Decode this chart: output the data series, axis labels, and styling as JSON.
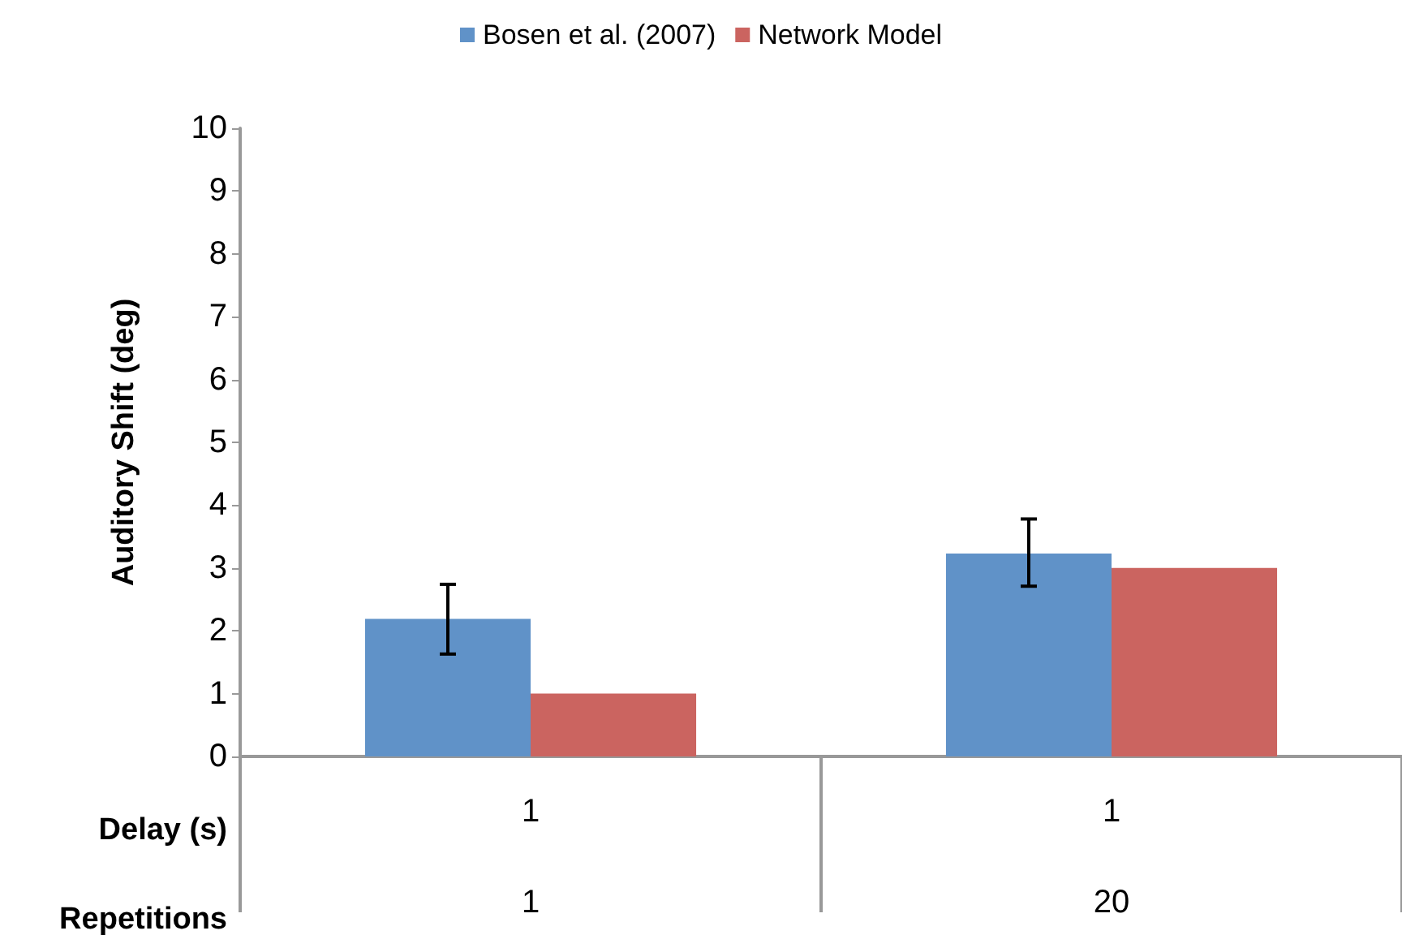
{
  "chart_data": {
    "type": "bar",
    "ylabel": "Auditory Shift (deg)",
    "categories": [
      "1\n1",
      "1\n20"
    ],
    "annotations": [
      "Delay (s)",
      "Repetitions"
    ],
    "series": [
      {
        "name": "Bosen et al. (2007)",
        "color": "#6092c8",
        "values": [
          2.19,
          3.23
        ],
        "errors": [
          [
            1.63,
            2.74
          ],
          [
            2.71,
            3.78
          ]
        ]
      },
      {
        "name": "Network Model",
        "color": "#cb6460",
        "values": [
          1.0,
          3.0
        ]
      }
    ],
    "ylim": [
      0,
      10
    ],
    "yticks": [
      0,
      1,
      2,
      3,
      4,
      5,
      6,
      7,
      8,
      9,
      10
    ],
    "grid": false,
    "legend": "top"
  }
}
